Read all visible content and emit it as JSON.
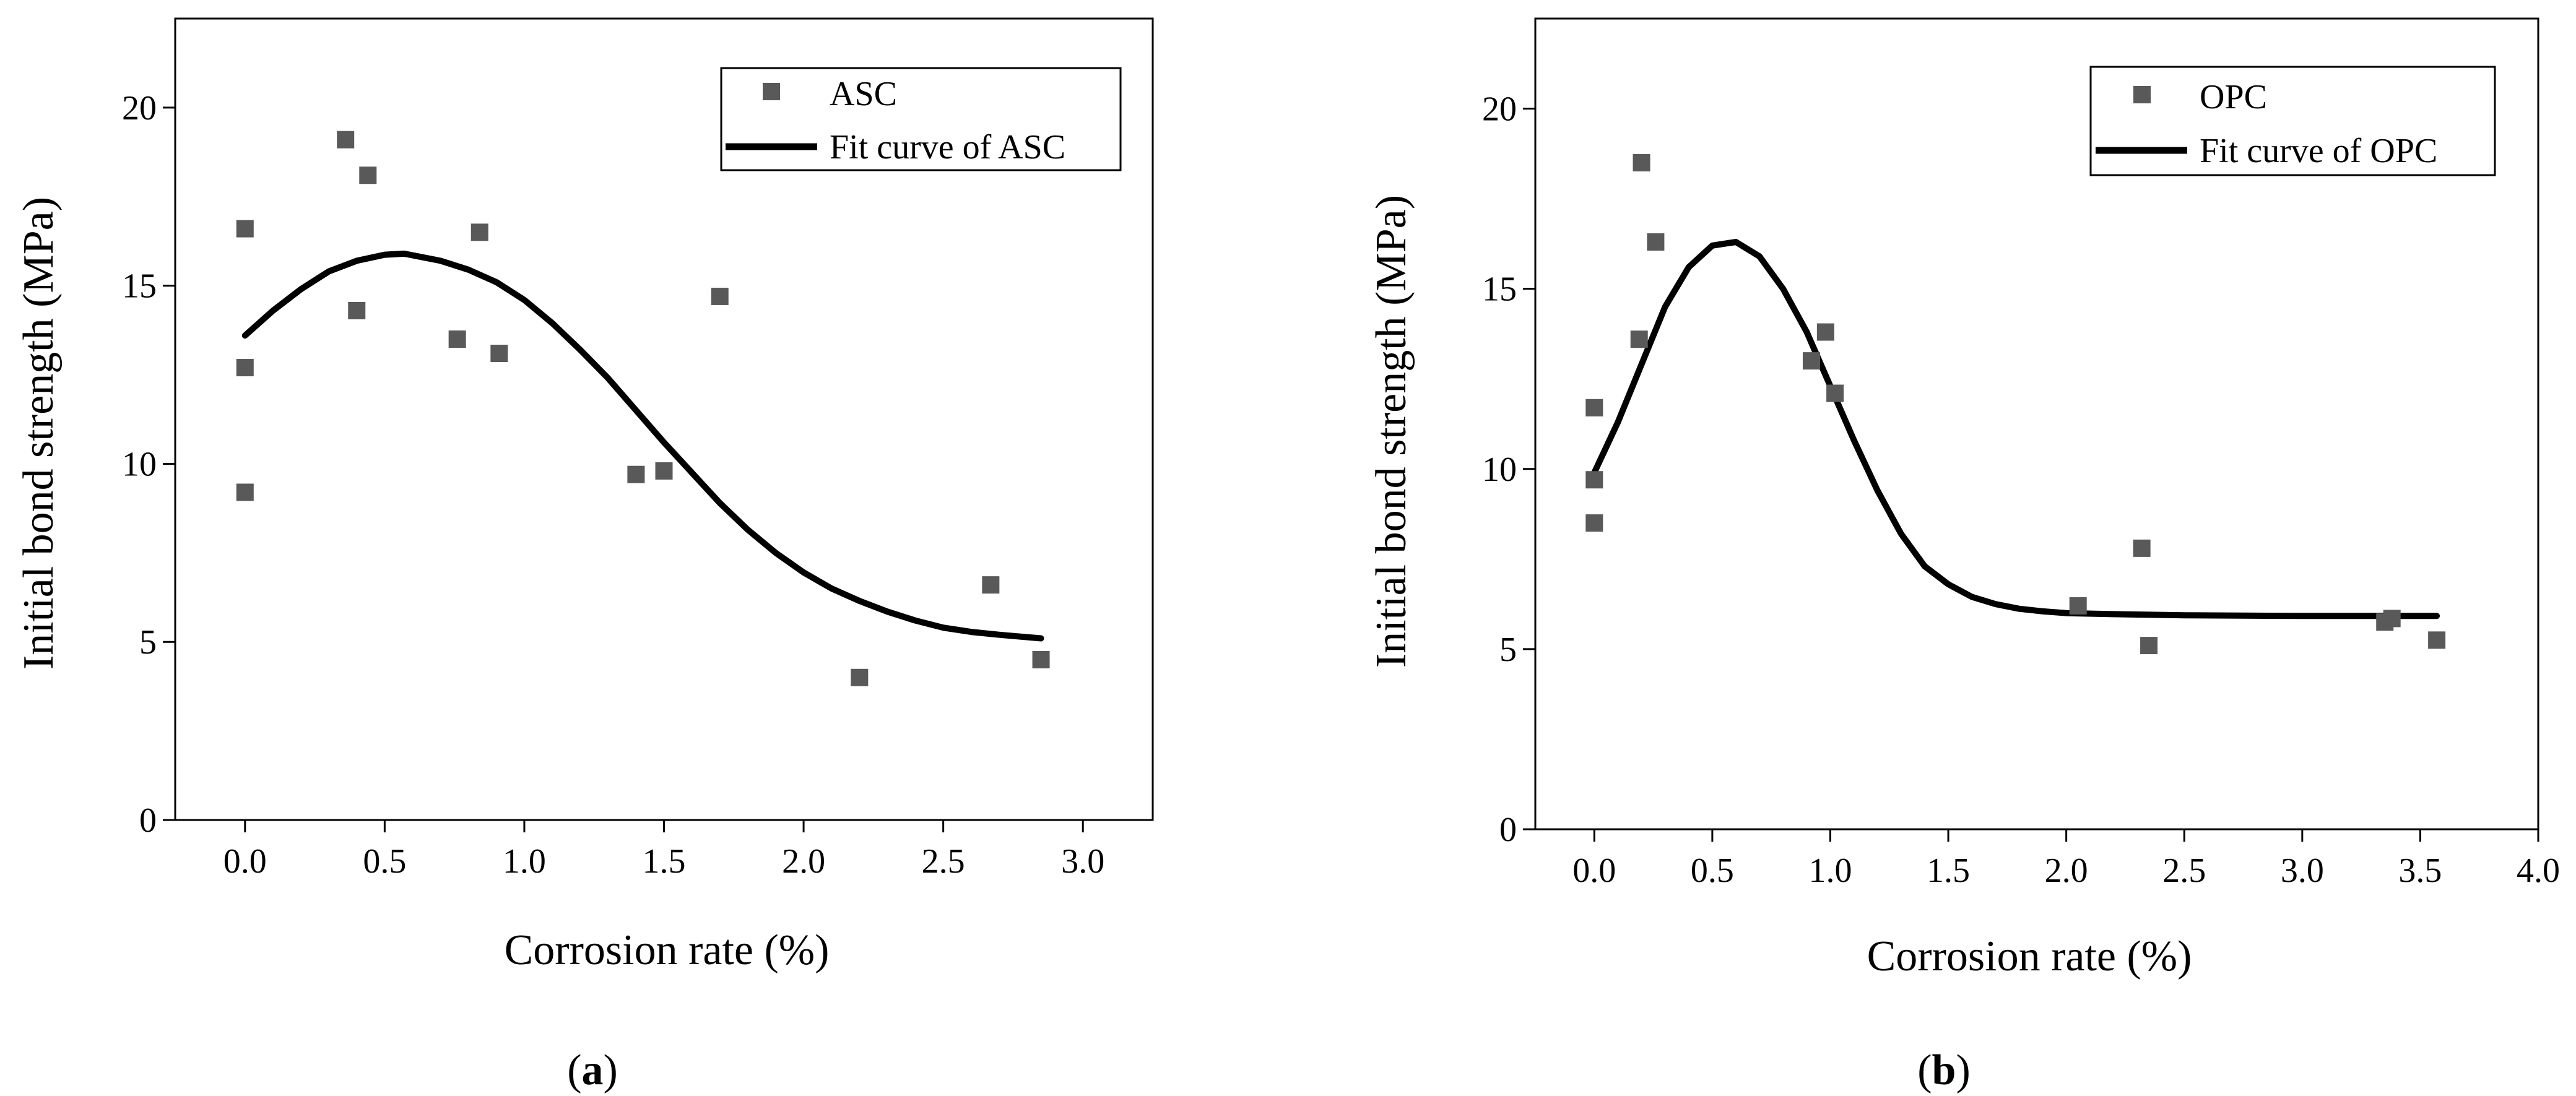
{
  "colors": {
    "point": "#595959",
    "curve": "#000000",
    "axis": "#000000",
    "background": "#ffffff"
  },
  "chart_data": [
    {
      "type": "scatter",
      "panel": "a",
      "panel_label": {
        "open": "(",
        "letter": "a",
        "close": ")"
      },
      "xlabel": "Corrosion rate (%)",
      "ylabel": "Initial bond strength (MPa)",
      "xlim": [
        -0.25,
        3.25
      ],
      "ylim": [
        0,
        22.5
      ],
      "xticks": [
        0,
        0.5,
        1,
        1.5,
        2,
        2.5,
        3
      ],
      "xtick_labels": [
        "0.0",
        "0.5",
        "1.0",
        "1.5",
        "2.0",
        "2.5",
        "3.0"
      ],
      "yticks": [
        0,
        5,
        10,
        15,
        20
      ],
      "ytick_labels": [
        "0",
        "5",
        "10",
        "15",
        "20"
      ],
      "legend": {
        "position": "top-right",
        "entries": [
          "ASC",
          "Fit curve of ASC"
        ]
      },
      "series": [
        {
          "name": "ASC",
          "kind": "points",
          "x": [
            0.0,
            0.0,
            0.0,
            0.36,
            0.4,
            0.44,
            0.76,
            0.84,
            0.91,
            1.4,
            1.5,
            1.7,
            2.2,
            2.67,
            2.85
          ],
          "y": [
            16.6,
            12.7,
            9.2,
            19.1,
            14.3,
            18.1,
            13.5,
            16.5,
            13.1,
            9.7,
            9.8,
            14.7,
            4.0,
            6.6,
            4.5
          ]
        },
        {
          "name": "Fit curve of ASC",
          "kind": "line",
          "x": [
            0.0,
            0.1,
            0.2,
            0.3,
            0.4,
            0.5,
            0.57,
            0.7,
            0.8,
            0.9,
            1.0,
            1.1,
            1.2,
            1.3,
            1.4,
            1.5,
            1.6,
            1.7,
            1.8,
            1.9,
            2.0,
            2.1,
            2.2,
            2.3,
            2.4,
            2.5,
            2.6,
            2.7,
            2.85
          ],
          "y": [
            13.6,
            14.3,
            14.9,
            15.4,
            15.7,
            15.87,
            15.9,
            15.7,
            15.45,
            15.1,
            14.6,
            13.95,
            13.2,
            12.4,
            11.5,
            10.6,
            9.75,
            8.9,
            8.15,
            7.5,
            6.95,
            6.5,
            6.15,
            5.85,
            5.6,
            5.4,
            5.28,
            5.2,
            5.1
          ]
        }
      ]
    },
    {
      "type": "scatter",
      "panel": "b",
      "panel_label": {
        "open": "(",
        "letter": "b",
        "close": ")"
      },
      "xlabel": "Corrosion rate (%)",
      "ylabel": "Initial bond strength (MPa)",
      "xlim": [
        -0.25,
        4.0
      ],
      "ylim": [
        0,
        22.5
      ],
      "xticks": [
        0,
        0.5,
        1,
        1.5,
        2,
        2.5,
        3,
        3.5,
        4
      ],
      "xtick_labels": [
        "0.0",
        "0.5",
        "1.0",
        "1.5",
        "2.0",
        "2.5",
        "3.0",
        "3.5",
        "4.0"
      ],
      "yticks": [
        0,
        5,
        10,
        15,
        20
      ],
      "ytick_labels": [
        "0",
        "5",
        "10",
        "15",
        "20"
      ],
      "legend": {
        "position": "top-right",
        "entries": [
          "OPC",
          "Fit curve of OPC"
        ]
      },
      "series": [
        {
          "name": "OPC",
          "kind": "points",
          "x": [
            0.0,
            0.0,
            0.0,
            0.19,
            0.2,
            0.26,
            0.92,
            0.98,
            1.02,
            2.05,
            2.32,
            2.35,
            3.35,
            3.38,
            3.57
          ],
          "y": [
            11.7,
            9.7,
            8.5,
            13.6,
            18.5,
            16.3,
            13.0,
            13.8,
            12.1,
            6.2,
            7.8,
            5.1,
            5.75,
            5.85,
            5.25
          ]
        },
        {
          "name": "Fit curve of OPC",
          "kind": "line",
          "x": [
            0.0,
            0.1,
            0.2,
            0.3,
            0.4,
            0.5,
            0.6,
            0.7,
            0.8,
            0.9,
            1.0,
            1.1,
            1.2,
            1.3,
            1.4,
            1.5,
            1.6,
            1.7,
            1.8,
            1.9,
            2.0,
            2.2,
            2.5,
            3.0,
            3.57
          ],
          "y": [
            9.9,
            11.3,
            12.9,
            14.5,
            15.6,
            16.2,
            16.3,
            15.9,
            15.0,
            13.8,
            12.3,
            10.8,
            9.4,
            8.2,
            7.3,
            6.8,
            6.45,
            6.25,
            6.12,
            6.05,
            6.0,
            5.97,
            5.94,
            5.92,
            5.92
          ]
        }
      ]
    }
  ]
}
